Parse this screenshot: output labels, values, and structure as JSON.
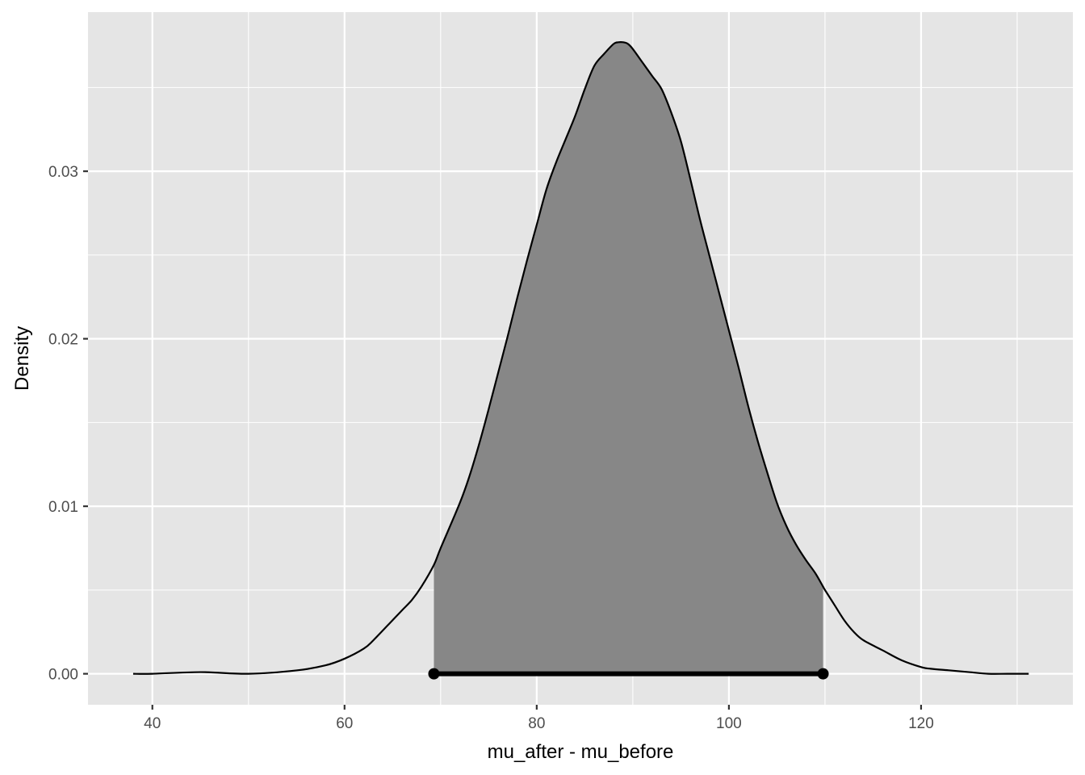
{
  "chart_data": {
    "type": "area",
    "title": "",
    "xlabel": "mu_after - mu_before",
    "ylabel": "Density",
    "xlim": [
      33.3,
      135.8
    ],
    "ylim": [
      -0.00185,
      0.0395
    ],
    "x_ticks": [
      40,
      60,
      80,
      100,
      120
    ],
    "x_tick_labels": [
      "40",
      "60",
      "80",
      "100",
      "120"
    ],
    "y_ticks": [
      0.0,
      0.01,
      0.02,
      0.03
    ],
    "y_tick_labels": [
      "0.00",
      "0.01",
      "0.02",
      "0.03"
    ],
    "grid": true,
    "panel_background": "#e5e5e5",
    "shade_color": "#878787",
    "line_color": "#000000",
    "series": [
      {
        "x": [
          38.0,
          40,
          45,
          50,
          55,
          58,
          60,
          62,
          63,
          65,
          66,
          67,
          68,
          69.3,
          70,
          72,
          73,
          74,
          75,
          76,
          77,
          78,
          79,
          80,
          81,
          82,
          83,
          84,
          85,
          86,
          87,
          88,
          88.5,
          89,
          89.5,
          90,
          91,
          92,
          93,
          94,
          95,
          96,
          97,
          98,
          99,
          100,
          101,
          102,
          103,
          104,
          105,
          106,
          107,
          108,
          109,
          109.8,
          110,
          111,
          112,
          113,
          114,
          116,
          118,
          120,
          121,
          123,
          125,
          127,
          129,
          131.2
        ],
        "y": [
          0.0,
          0.0,
          0.0001,
          0.0,
          0.0002,
          0.0005,
          0.0009,
          0.0015,
          0.002,
          0.0032,
          0.0038,
          0.0044,
          0.0052,
          0.0065,
          0.0075,
          0.0102,
          0.0118,
          0.0137,
          0.0158,
          0.018,
          0.0202,
          0.0225,
          0.0247,
          0.0268,
          0.0289,
          0.0305,
          0.0319,
          0.0333,
          0.0349,
          0.0363,
          0.037,
          0.0376,
          0.0377,
          0.0377,
          0.0376,
          0.0373,
          0.0365,
          0.0357,
          0.0349,
          0.0335,
          0.0318,
          0.0295,
          0.0271,
          0.0249,
          0.0227,
          0.0205,
          0.0183,
          0.016,
          0.0139,
          0.012,
          0.0102,
          0.0088,
          0.0077,
          0.0068,
          0.006,
          0.0052,
          0.005,
          0.0041,
          0.0032,
          0.0025,
          0.002,
          0.0014,
          0.0008,
          0.0004,
          0.0003,
          0.0002,
          0.0001,
          0.0,
          0.0,
          0.0
        ]
      }
    ],
    "shaded_interval": [
      69.3,
      109.8
    ],
    "interval_segment": {
      "x_start": 69.3,
      "x_end": 109.8,
      "y": 0.0
    }
  }
}
